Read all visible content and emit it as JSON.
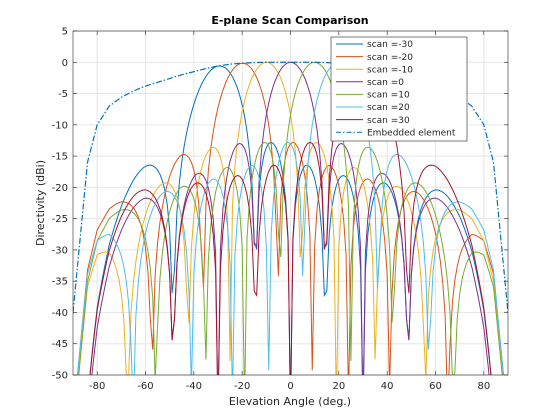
{
  "chart_data": {
    "type": "line",
    "title": "E-plane Scan Comparison",
    "xlabel": "Elevation Angle (deg.)",
    "ylabel": "Directivity (dBi)",
    "xlim": [
      -90,
      90
    ],
    "ylim": [
      -50,
      5
    ],
    "xticks": [
      -80,
      -60,
      -40,
      -20,
      0,
      20,
      40,
      60,
      80
    ],
    "yticks": [
      5,
      0,
      -5,
      -10,
      -15,
      -20,
      -25,
      -30,
      -35,
      -40,
      -45,
      -50
    ],
    "grid": true,
    "legend_position": "top-right",
    "element_count": 8,
    "sample_step_deg": 1,
    "series": [
      {
        "name": "scan =-30",
        "scan_deg": -30,
        "color": "#0072BD",
        "style": "solid"
      },
      {
        "name": "scan =-20",
        "scan_deg": -20,
        "color": "#D95319",
        "style": "solid"
      },
      {
        "name": "scan =-10",
        "scan_deg": -10,
        "color": "#EDB120",
        "style": "solid"
      },
      {
        "name": "scan =0",
        "scan_deg": 0,
        "color": "#7E2F8E",
        "style": "solid"
      },
      {
        "name": "scan =10",
        "scan_deg": 10,
        "color": "#77AC30",
        "style": "solid"
      },
      {
        "name": "scan =20",
        "scan_deg": 20,
        "color": "#4DBEEE",
        "style": "solid"
      },
      {
        "name": "scan =30",
        "scan_deg": 30,
        "color": "#A2142F",
        "style": "solid"
      },
      {
        "name": "Embedded element",
        "color": "#0072BD",
        "style": "dashdot",
        "x": [
          -90,
          -87,
          -84,
          -80,
          -75,
          -70,
          -65,
          -60,
          -55,
          -50,
          -45,
          -40,
          -35,
          -30,
          -25,
          -20,
          -15,
          -10,
          -5,
          0,
          5,
          10,
          15,
          20,
          25,
          30,
          35,
          40,
          45,
          50,
          55,
          60,
          65,
          70,
          75,
          80,
          84,
          87,
          90
        ],
        "y": [
          -40,
          -28,
          -16,
          -10,
          -7,
          -5.6,
          -4.6,
          -3.8,
          -3.2,
          -2.6,
          -2.0,
          -1.5,
          -1.0,
          -0.6,
          -0.3,
          -0.15,
          -0.05,
          0,
          0,
          0,
          0,
          0,
          -0.05,
          -0.15,
          -0.3,
          -0.6,
          -1.0,
          -1.5,
          -2.0,
          -2.6,
          -3.2,
          -3.8,
          -4.6,
          -5.6,
          -7,
          -10,
          -16,
          -28,
          -40
        ]
      }
    ]
  }
}
